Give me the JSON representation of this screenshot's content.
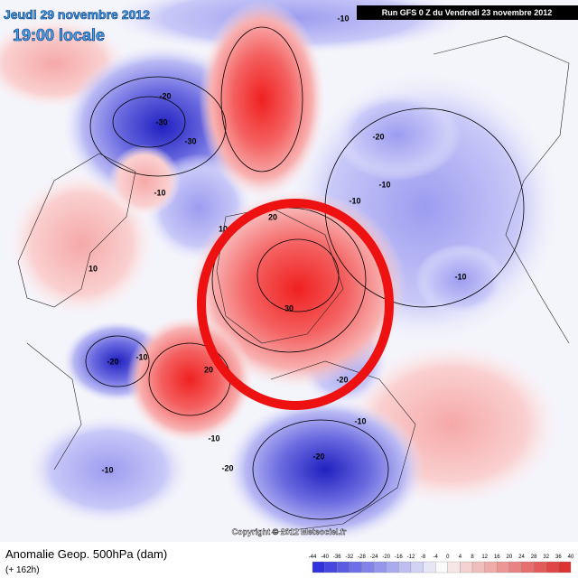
{
  "header": {
    "date": "Jeudi 29 novembre 2012",
    "time": "19:00 locale",
    "run": "Run GFS 0 Z du Vendredi 23 novembre 2012"
  },
  "footer": {
    "title": "Anomalie Geop. 500hPa (dam)",
    "lead": "(+ 162h)",
    "copyright": "Copyright © 2012 Meteociel.fr"
  },
  "legend": {
    "ticks": [
      -44,
      -40,
      -36,
      -32,
      -28,
      -24,
      -20,
      -16,
      -12,
      -8,
      -4,
      0,
      4,
      8,
      12,
      16,
      20,
      24,
      28,
      32,
      36,
      40
    ]
  },
  "map": {
    "contour_labels": [
      -10,
      -20,
      -30,
      -30,
      -10,
      10,
      20,
      30,
      20,
      10,
      -20,
      -10,
      -10,
      -20,
      -10,
      -20,
      -10,
      -20,
      -10,
      -10,
      -20,
      10
    ]
  }
}
